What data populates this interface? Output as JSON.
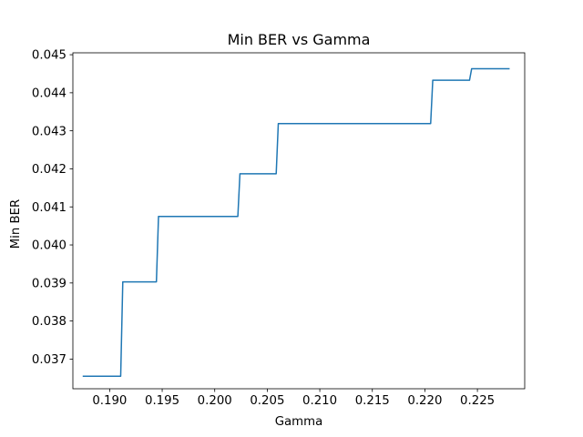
{
  "chart_data": {
    "type": "line",
    "title": "Min BER vs Gamma",
    "xlabel": "Gamma",
    "ylabel": "Min BER",
    "xlim": [
      0.1865,
      0.2295
    ],
    "ylim": [
      0.03622,
      0.04505
    ],
    "x_ticks": [
      0.19,
      0.195,
      0.2,
      0.205,
      0.21,
      0.215,
      0.22,
      0.225
    ],
    "x_tick_labels": [
      "0.190",
      "0.195",
      "0.200",
      "0.205",
      "0.210",
      "0.215",
      "0.220",
      "0.225"
    ],
    "y_ticks": [
      0.037,
      0.038,
      0.039,
      0.04,
      0.041,
      0.042,
      0.043,
      0.044,
      0.045
    ],
    "y_tick_labels": [
      "0.037",
      "0.038",
      "0.039",
      "0.040",
      "0.041",
      "0.042",
      "0.043",
      "0.044",
      "0.045"
    ],
    "grid": false,
    "series": [
      {
        "color": "#1f77b4",
        "x": [
          0.1875,
          0.19105,
          0.19125,
          0.19445,
          0.19465,
          0.2022,
          0.2024,
          0.20585,
          0.20605,
          0.22055,
          0.22075,
          0.22425,
          0.22445,
          0.228
        ],
        "y": [
          0.03655,
          0.03655,
          0.03903,
          0.03903,
          0.04075,
          0.04075,
          0.04187,
          0.04187,
          0.04319,
          0.04319,
          0.04433,
          0.04433,
          0.04463,
          0.04463
        ]
      }
    ]
  }
}
